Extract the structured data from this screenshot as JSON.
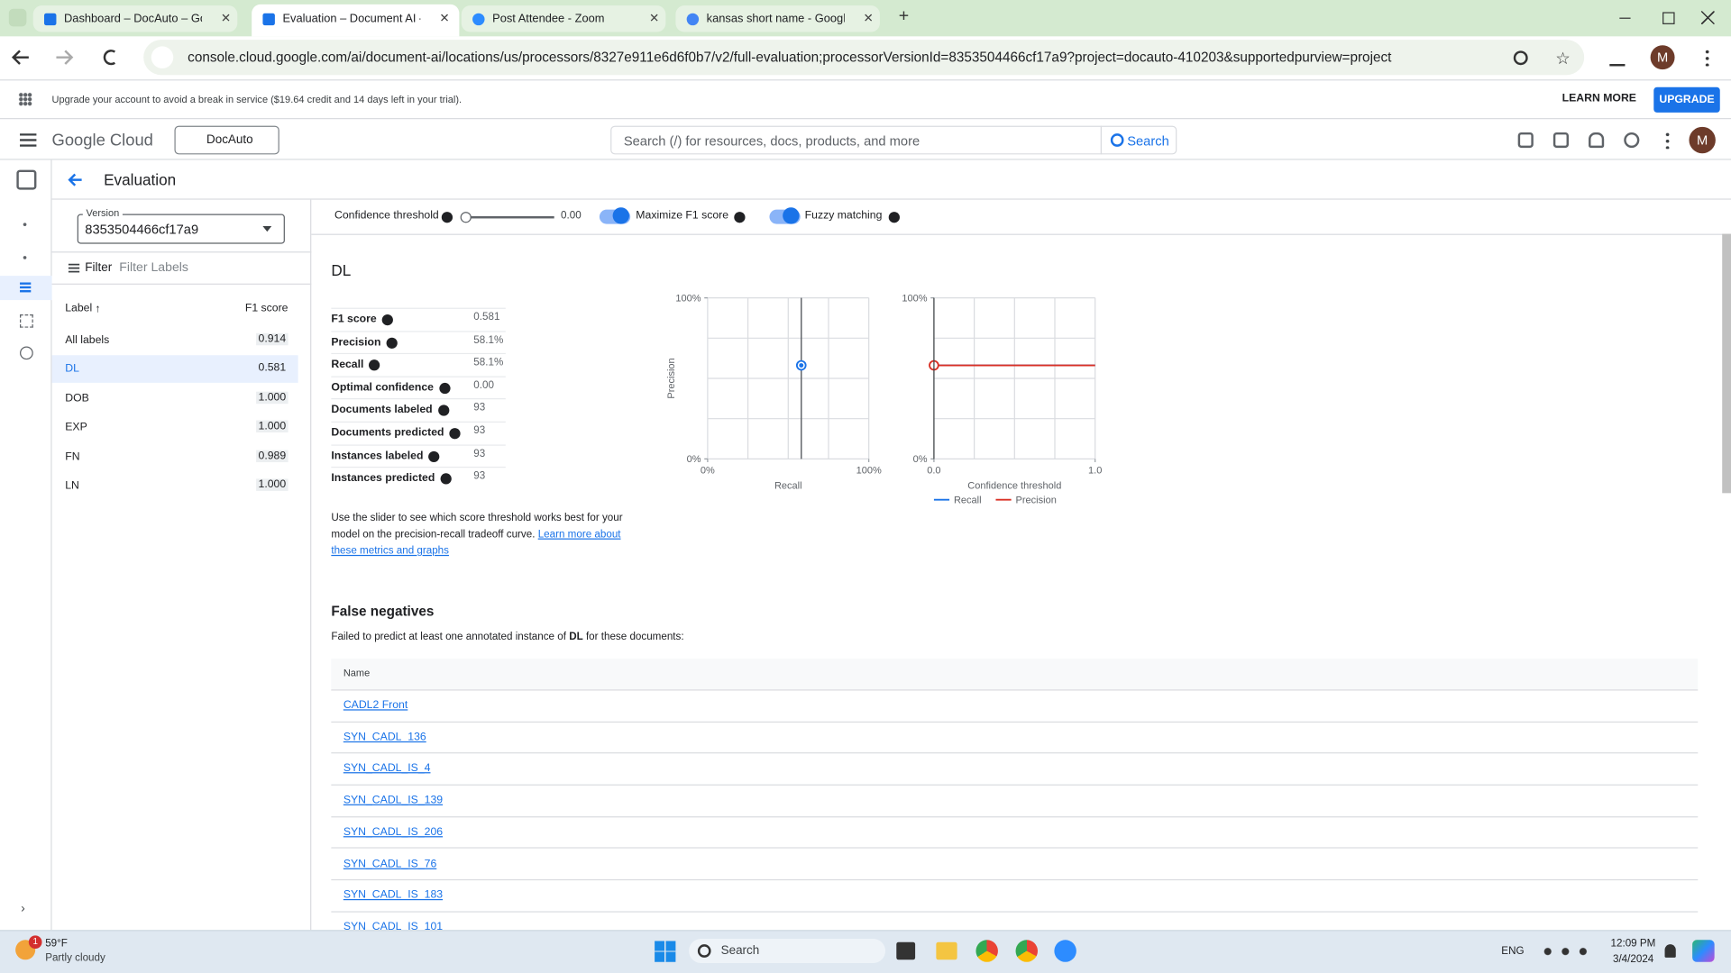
{
  "browser": {
    "tabs": [
      "Dashboard – DocAuto – Goo",
      "Evaluation – Document AI –",
      "Post Attendee - Zoom",
      "kansas short name - Google"
    ],
    "url": "console.cloud.google.com/ai/document-ai/locations/us/processors/8327e911e6d6f0b7/v2/full-evaluation;processorVersionId=8353504466cf17a9?project=docauto-410203&supportedpurview=project",
    "avatar": "M"
  },
  "banner": {
    "text": "Upgrade your account to avoid a break in service ($19.64 credit and 14 days left in your trial).",
    "learn_more": "LEARN MORE",
    "upgrade": "UPGRADE"
  },
  "header": {
    "product": "Google Cloud",
    "project": "DocAuto",
    "search_placeholder": "Search (/) for resources, docs, products, and more",
    "search_button": "Search",
    "avatar": "M"
  },
  "page": {
    "title": "Evaluation"
  },
  "sidebar": {
    "version_label": "Version",
    "version_value": "8353504466cf17a9",
    "filter_label": "Filter",
    "filter_placeholder": "Filter Labels",
    "columns": [
      "Label",
      "F1 score"
    ],
    "rows": [
      {
        "label": "All labels",
        "score": "0.914"
      },
      {
        "label": "DL",
        "score": "0.581"
      },
      {
        "label": "DOB",
        "score": "1.000"
      },
      {
        "label": "EXP",
        "score": "1.000"
      },
      {
        "label": "FN",
        "score": "0.989"
      },
      {
        "label": "LN",
        "score": "1.000"
      }
    ]
  },
  "controls": {
    "confidence_label": "Confidence threshold",
    "confidence_value": "0.00",
    "maximize_f1": "Maximize F1 score",
    "fuzzy_matching": "Fuzzy matching"
  },
  "details": {
    "title": "DL",
    "metrics": [
      {
        "name": "F1 score",
        "value": "0.581"
      },
      {
        "name": "Precision",
        "value": "58.1%"
      },
      {
        "name": "Recall",
        "value": "58.1%"
      },
      {
        "name": "Optimal confidence",
        "value": "0.00"
      },
      {
        "name": "Documents labeled",
        "value": "93"
      },
      {
        "name": "Documents predicted",
        "value": "93"
      },
      {
        "name": "Instances labeled",
        "value": "93"
      },
      {
        "name": "Instances predicted",
        "value": "93"
      }
    ],
    "description": "Use the slider to see which score threshold works best for your model on the precision-recall tradeoff curve.",
    "link": "Learn more about these metrics and graphs"
  },
  "chart_data": [
    {
      "type": "scatter",
      "x_label": "Recall",
      "y_label": "Precision",
      "xlim": [
        0,
        100
      ],
      "ylim": [
        0,
        100
      ],
      "xticks": [
        {
          "value": 0,
          "label": "0%"
        },
        {
          "value": 100,
          "label": "100%"
        }
      ],
      "yticks": [
        {
          "value": 0,
          "label": "0%"
        },
        {
          "value": 100,
          "label": "100%"
        }
      ],
      "x": [
        58.1
      ],
      "values": [
        58.1
      ],
      "color": "#1a73e8",
      "grid": true
    },
    {
      "type": "line",
      "x_label": "Confidence threshold",
      "xlim": [
        0,
        1
      ],
      "ylim": [
        0,
        100
      ],
      "xticks": [
        {
          "value": 0,
          "label": "0.0"
        },
        {
          "value": 1,
          "label": "1.0"
        }
      ],
      "yticks": [
        {
          "value": 0,
          "label": "0%"
        },
        {
          "value": 100,
          "label": "100%"
        }
      ],
      "x": [
        0,
        1
      ],
      "series": [
        {
          "name": "Recall",
          "color": "#1a73e8",
          "values": [
            58.1,
            58.1
          ]
        },
        {
          "name": "Precision",
          "color": "#d93025",
          "values": [
            58.1,
            58.1
          ]
        }
      ],
      "grid": true
    }
  ],
  "false_negatives": {
    "title": "False negatives",
    "desc_prefix": "Failed to predict at least one annotated instance of",
    "desc_label": "DL",
    "desc_suffix": "for these documents:",
    "column": "Name",
    "rows": [
      "CADL2 Front",
      "SYN_CADL_136",
      "SYN_CADL_IS_4",
      "SYN_CADL_IS_139",
      "SYN_CADL_IS_206",
      "SYN_CADL_IS_76",
      "SYN_CADL_IS_183",
      "SYN_CADL_IS_101"
    ]
  },
  "taskbar": {
    "badge": "1",
    "temperature": "59°F",
    "weather": "Partly cloudy",
    "search": "Search",
    "language": "ENG",
    "time": "12:09 PM",
    "date": "3/4/2024"
  }
}
